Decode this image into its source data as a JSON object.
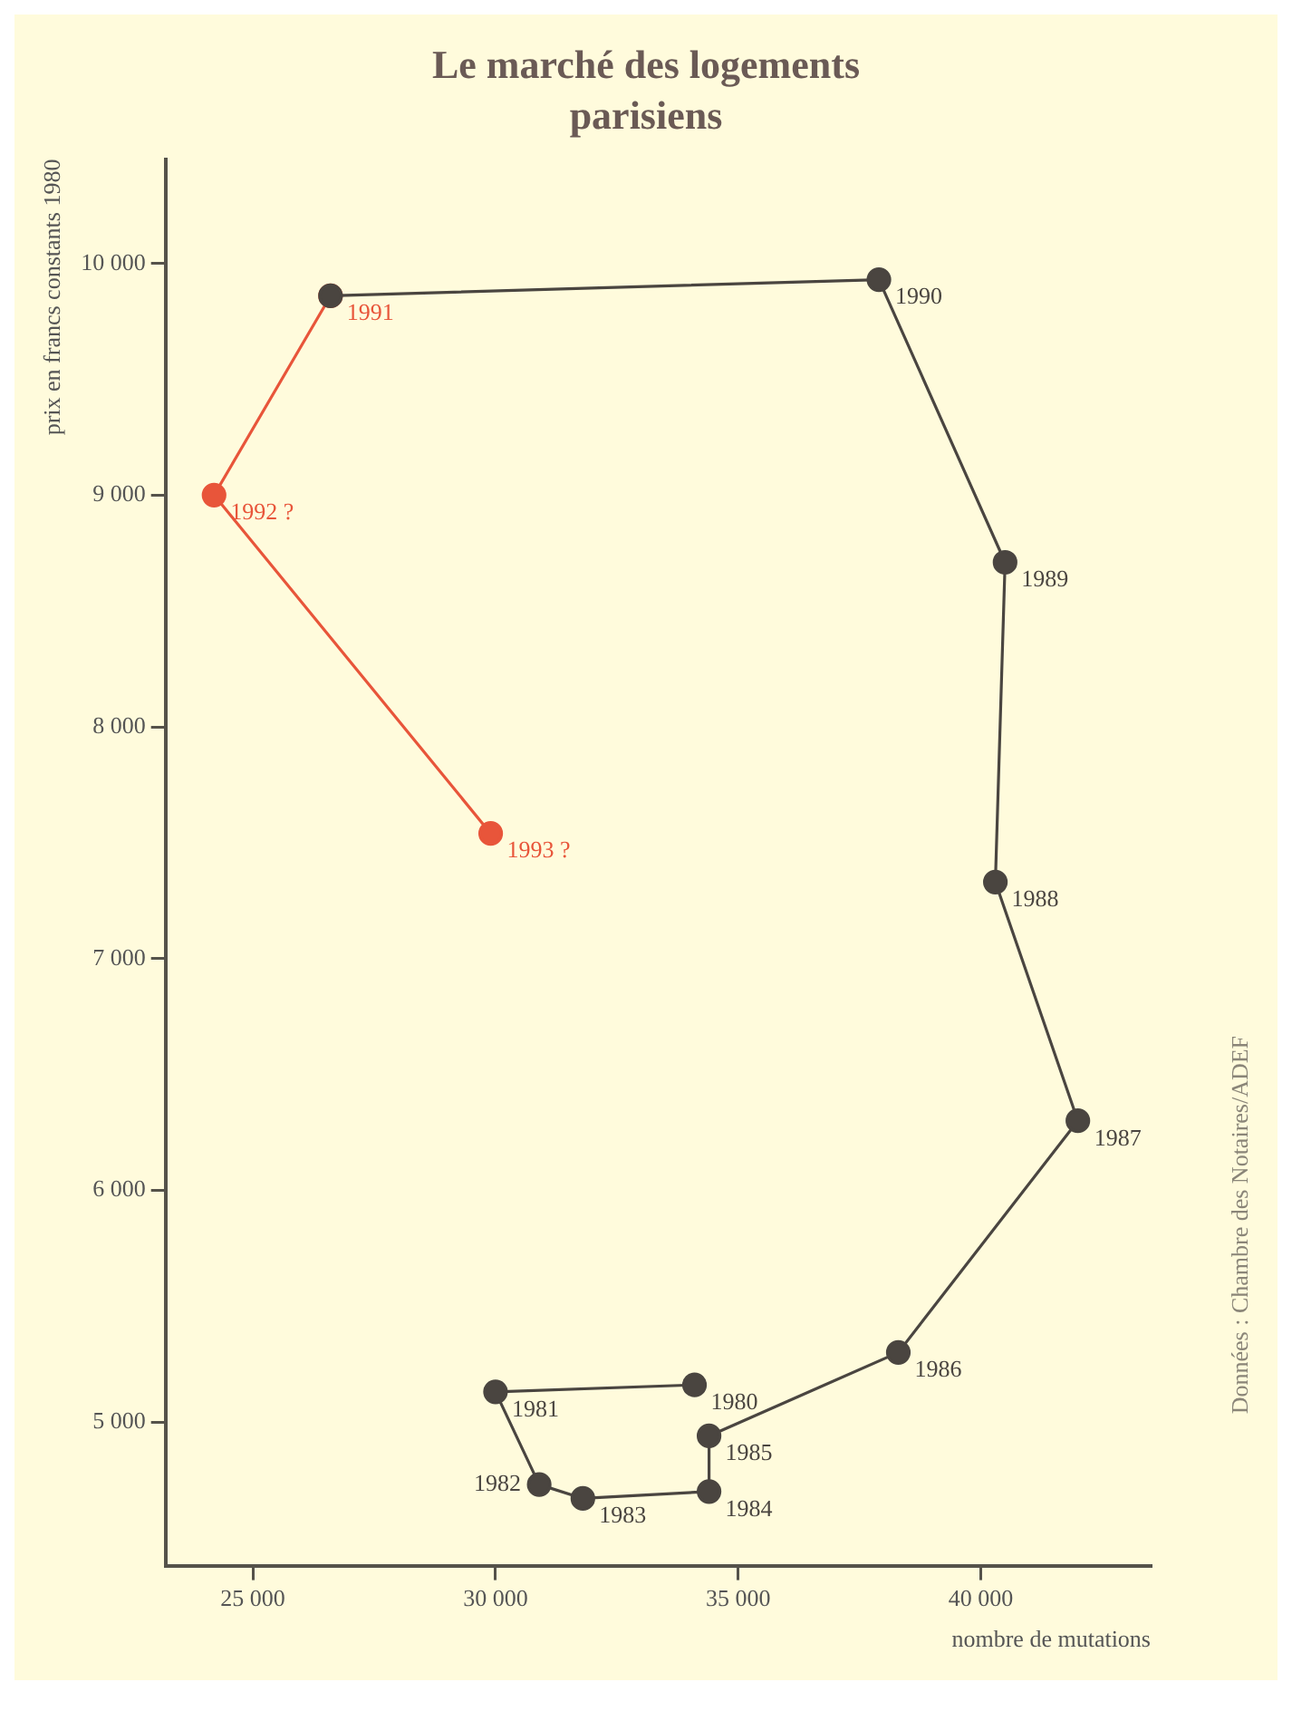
{
  "chart_data": {
    "type": "line",
    "title": "Le marché des logements parisiens",
    "xlabel": "nombre de mutations",
    "ylabel": "prix en francs constants 1980",
    "xlim": [
      23200,
      43500
    ],
    "ylim": [
      4380,
      10450
    ],
    "xticks": [
      {
        "value": 25000,
        "label": "25 000"
      },
      {
        "value": 30000,
        "label": "30 000"
      },
      {
        "value": 35000,
        "label": "35 000"
      },
      {
        "value": 40000,
        "label": "40 000"
      }
    ],
    "yticks": [
      {
        "value": 5000,
        "label": "5 000"
      },
      {
        "value": 6000,
        "label": "6 000"
      },
      {
        "value": 7000,
        "label": "7 000"
      },
      {
        "value": 8000,
        "label": "8 000"
      },
      {
        "value": 9000,
        "label": "9 000"
      },
      {
        "value": 10000,
        "label": "10 000"
      }
    ],
    "grid": false,
    "legend": false,
    "marker": "circle",
    "line_style": "solid",
    "series": [
      {
        "color": "#4a4540",
        "x": [
          34100,
          30000,
          30900,
          31800,
          34400,
          34400,
          38300,
          42000,
          40300,
          40500,
          37900,
          26600
        ],
        "values": [
          5160,
          5130,
          4730,
          4670,
          4700,
          4940,
          5300,
          6300,
          7330,
          8710,
          9930,
          9860
        ]
      },
      {
        "color": "#e8553a",
        "x": [
          26600,
          24200,
          29900
        ],
        "values": [
          9860,
          9000,
          7540
        ]
      }
    ],
    "annotations": [
      {
        "text": "1980",
        "x": 34100,
        "y": 5160
      },
      {
        "text": "1981",
        "x": 30000,
        "y": 5130
      },
      {
        "text": "1982",
        "x": 30900,
        "y": 4730
      },
      {
        "text": "1983",
        "x": 31800,
        "y": 4670
      },
      {
        "text": "1984",
        "x": 34400,
        "y": 4700
      },
      {
        "text": "1985",
        "x": 34400,
        "y": 4940
      },
      {
        "text": "1986",
        "x": 38300,
        "y": 5300
      },
      {
        "text": "1987",
        "x": 42000,
        "y": 6300
      },
      {
        "text": "1988",
        "x": 40300,
        "y": 7330
      },
      {
        "text": "1989",
        "x": 40500,
        "y": 8710
      },
      {
        "text": "1990",
        "x": 37900,
        "y": 9930
      },
      {
        "text": "1991",
        "x": 26600,
        "y": 9860
      },
      {
        "text": "1992 ?",
        "x": 24200,
        "y": 9000
      },
      {
        "text": "1993 ?",
        "x": 29900,
        "y": 7540
      },
      "Données : Chambre des Notaires/ADEF"
    ]
  }
}
